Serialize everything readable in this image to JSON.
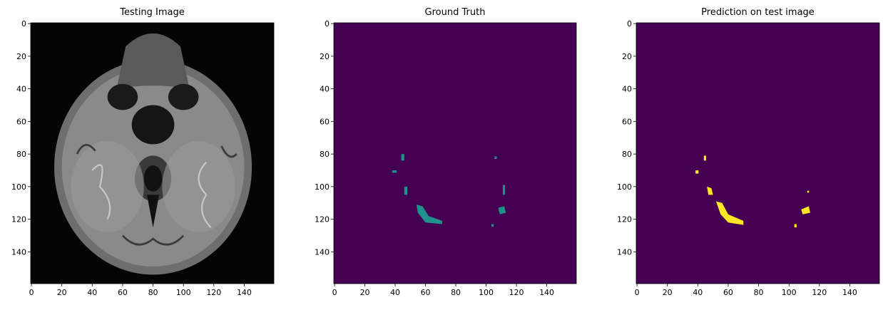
{
  "chart_data": [
    {
      "type": "image",
      "title": "Testing Image",
      "xlim": [
        -0.5,
        159.5
      ],
      "ylim": [
        159.5,
        -0.5
      ],
      "xticks": [
        0,
        20,
        40,
        60,
        80,
        100,
        120,
        140
      ],
      "yticks": [
        0,
        20,
        40,
        60,
        80,
        100,
        120,
        140
      ]
    },
    {
      "type": "image",
      "title": "Ground Truth",
      "xlim": [
        -0.5,
        159.5
      ],
      "ylim": [
        159.5,
        -0.5
      ],
      "xticks": [
        0,
        20,
        40,
        60,
        80,
        100,
        120,
        140
      ],
      "yticks": [
        0,
        20,
        40,
        60,
        80,
        100,
        120,
        140
      ]
    },
    {
      "type": "image",
      "title": "Prediction on test image",
      "xlim": [
        -0.5,
        159.5
      ],
      "ylim": [
        159.5,
        -0.5
      ],
      "xticks": [
        0,
        20,
        40,
        60,
        80,
        100,
        120,
        140
      ],
      "yticks": [
        0,
        20,
        40,
        60,
        80,
        100,
        120,
        140
      ]
    }
  ]
}
